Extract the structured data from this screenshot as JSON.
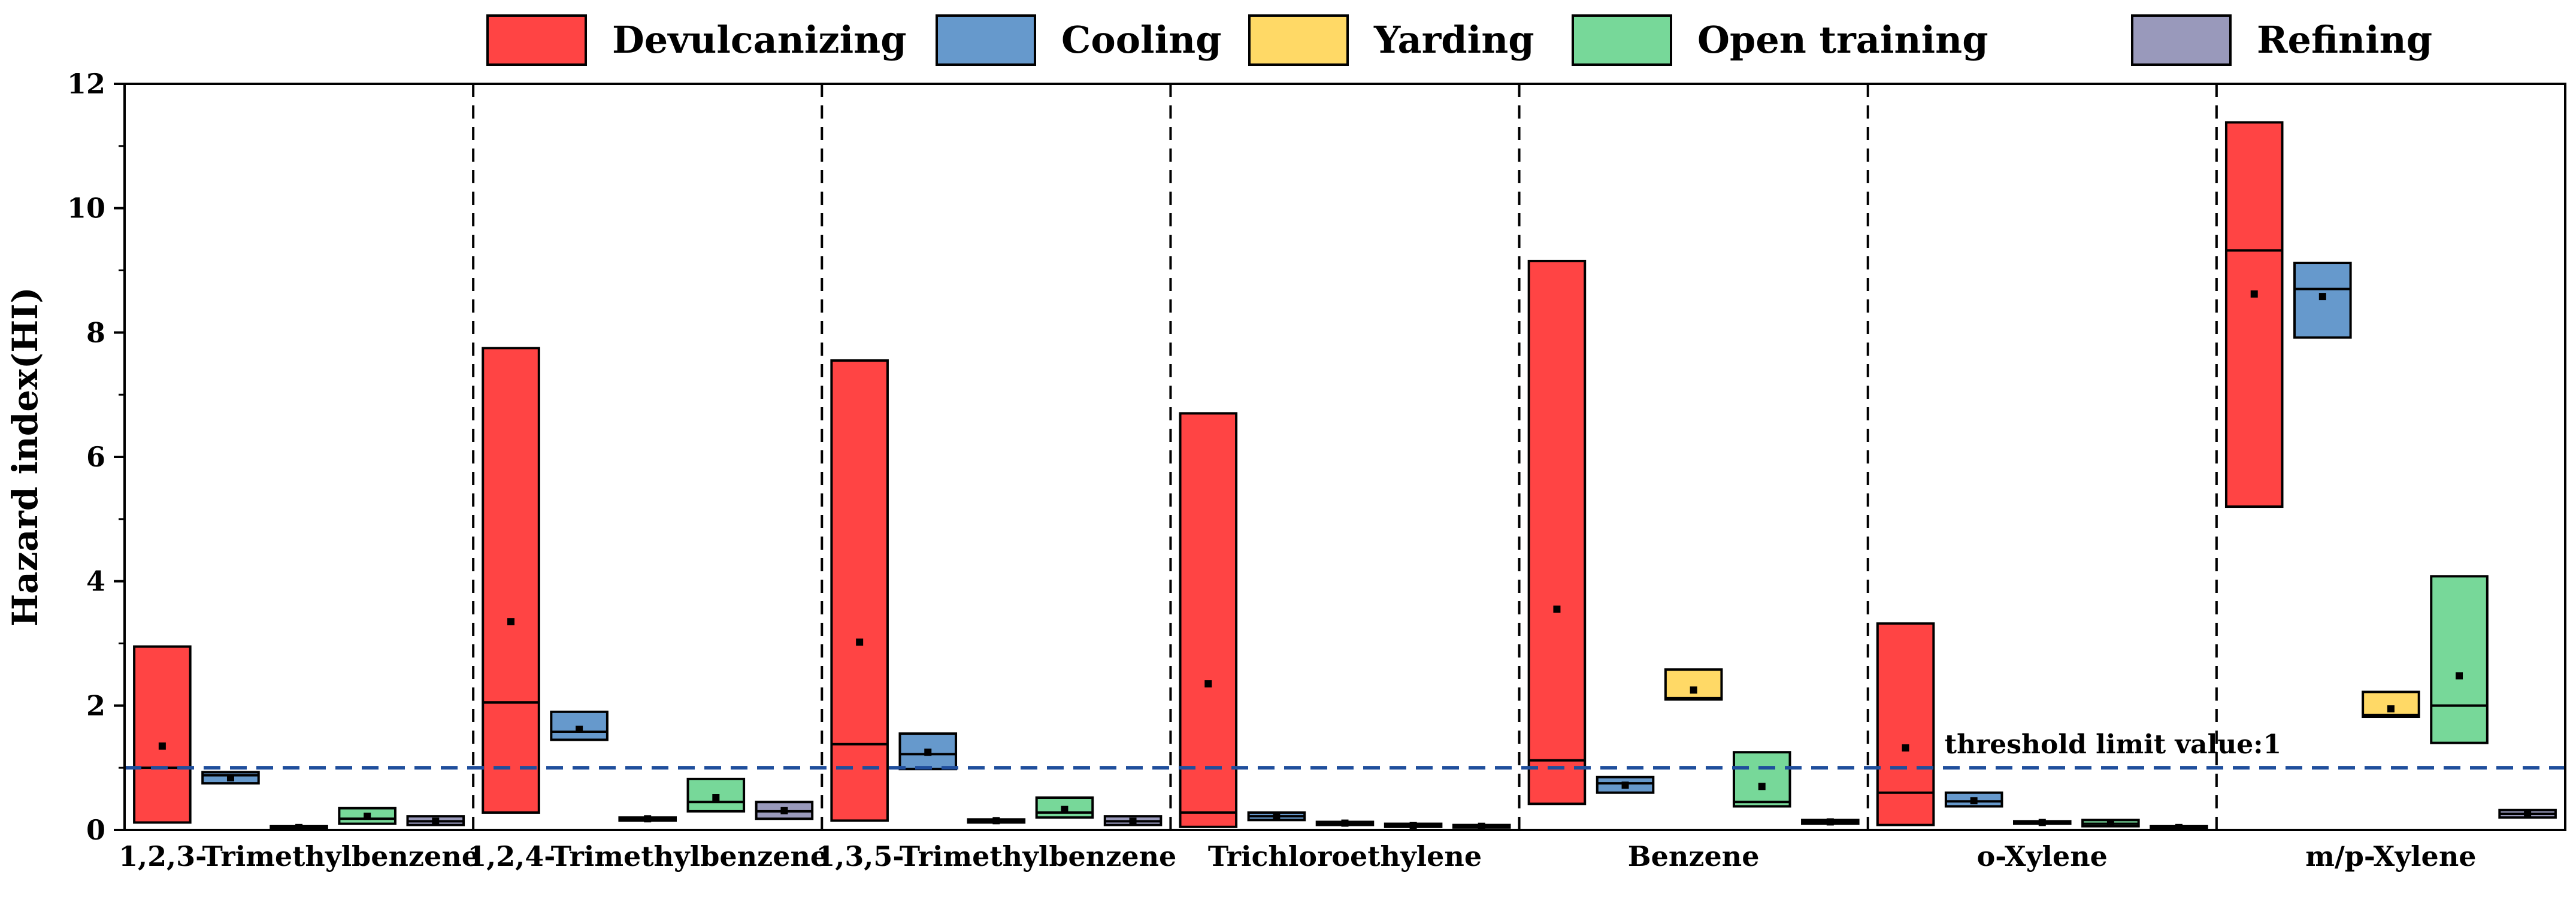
{
  "chart_data": {
    "type": "box",
    "title": "",
    "xlabel": "",
    "ylabel": "Hazard index(HI)",
    "ylim": [
      0,
      12
    ],
    "yticks": [
      0,
      2,
      4,
      6,
      8,
      10,
      12
    ],
    "ytick_labels": [
      "0",
      "2",
      "4",
      "6",
      "8",
      "10",
      "12"
    ],
    "legend_position": "top",
    "categories": [
      "1,2,3-Trimethylbenzene",
      "1,2,4-Trimethylbenzene",
      "1,3,5-Trimethylbenzene",
      "Trichloroethylene",
      "Benzene",
      "o-Xylene",
      "m/p-Xylene"
    ],
    "threshold": {
      "value": 1,
      "label": "threshold limit value:1",
      "color": "#1f4e9c"
    },
    "series": [
      {
        "name": "Devulcanizing",
        "color": "#ff4444",
        "boxes": [
          {
            "low": 0.12,
            "high": 2.95,
            "median": 1.0,
            "mean": 1.35
          },
          {
            "low": 0.28,
            "high": 7.75,
            "median": 2.05,
            "mean": 3.35
          },
          {
            "low": 0.15,
            "high": 7.55,
            "median": 1.38,
            "mean": 3.02
          },
          {
            "low": 0.05,
            "high": 6.7,
            "median": 0.28,
            "mean": 2.35
          },
          {
            "low": 0.42,
            "high": 9.15,
            "median": 1.12,
            "mean": 3.55
          },
          {
            "low": 0.08,
            "high": 3.32,
            "median": 0.6,
            "mean": 1.32
          },
          {
            "low": 5.2,
            "high": 11.38,
            "median": 9.32,
            "mean": 8.62
          }
        ]
      },
      {
        "name": "Cooling",
        "color": "#6699cc",
        "boxes": [
          {
            "low": 0.75,
            "high": 0.93,
            "median": 0.88,
            "mean": 0.84
          },
          {
            "low": 1.45,
            "high": 1.9,
            "median": 1.58,
            "mean": 1.62
          },
          {
            "low": 0.98,
            "high": 1.55,
            "median": 1.22,
            "mean": 1.25
          },
          {
            "low": 0.16,
            "high": 0.28,
            "median": 0.22,
            "mean": 0.22
          },
          {
            "low": 0.6,
            "high": 0.85,
            "median": 0.75,
            "mean": 0.72
          },
          {
            "low": 0.38,
            "high": 0.6,
            "median": 0.46,
            "mean": 0.47
          },
          {
            "low": 7.92,
            "high": 9.12,
            "median": 8.7,
            "mean": 8.58
          }
        ]
      },
      {
        "name": "Yarding",
        "color": "#ffd966",
        "boxes": [
          {
            "low": 0.02,
            "high": 0.06,
            "median": 0.04,
            "mean": 0.04
          },
          {
            "low": 0.15,
            "high": 0.2,
            "median": 0.18,
            "mean": 0.18
          },
          {
            "low": 0.12,
            "high": 0.17,
            "median": 0.15,
            "mean": 0.15
          },
          {
            "low": 0.08,
            "high": 0.13,
            "median": 0.11,
            "mean": 0.11
          },
          {
            "low": 2.1,
            "high": 2.58,
            "median": 2.12,
            "mean": 2.25
          },
          {
            "low": 0.1,
            "high": 0.14,
            "median": 0.12,
            "mean": 0.12
          },
          {
            "low": 1.82,
            "high": 2.22,
            "median": 1.85,
            "mean": 1.95
          }
        ]
      },
      {
        "name": "Open training",
        "color": "#77d899",
        "boxes": [
          {
            "low": 0.1,
            "high": 0.35,
            "median": 0.18,
            "mean": 0.22
          },
          {
            "low": 0.3,
            "high": 0.82,
            "median": 0.45,
            "mean": 0.52
          },
          {
            "low": 0.2,
            "high": 0.52,
            "median": 0.28,
            "mean": 0.33
          },
          {
            "low": 0.05,
            "high": 0.1,
            "median": 0.07,
            "mean": 0.07
          },
          {
            "low": 0.38,
            "high": 1.25,
            "median": 0.45,
            "mean": 0.7
          },
          {
            "low": 0.06,
            "high": 0.16,
            "median": 0.1,
            "mean": 0.11
          },
          {
            "low": 1.4,
            "high": 4.08,
            "median": 2.0,
            "mean": 2.48
          }
        ]
      },
      {
        "name": "Refining",
        "color": "#9999bb",
        "boxes": [
          {
            "low": 0.08,
            "high": 0.22,
            "median": 0.14,
            "mean": 0.14
          },
          {
            "low": 0.18,
            "high": 0.45,
            "median": 0.3,
            "mean": 0.31
          },
          {
            "low": 0.08,
            "high": 0.22,
            "median": 0.14,
            "mean": 0.14
          },
          {
            "low": 0.04,
            "high": 0.08,
            "median": 0.06,
            "mean": 0.06
          },
          {
            "low": 0.1,
            "high": 0.16,
            "median": 0.13,
            "mean": 0.13
          },
          {
            "low": 0.02,
            "high": 0.06,
            "median": 0.04,
            "mean": 0.04
          },
          {
            "low": 0.2,
            "high": 0.32,
            "median": 0.26,
            "mean": 0.26
          }
        ]
      }
    ]
  }
}
